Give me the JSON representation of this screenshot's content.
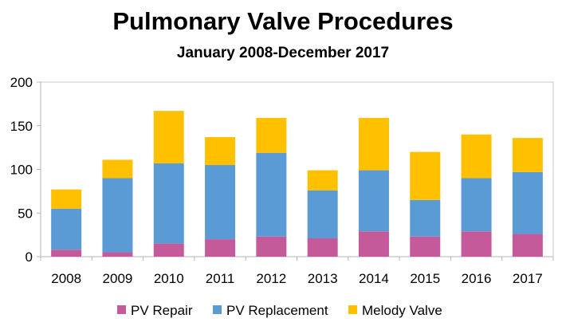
{
  "chart_data": {
    "type": "bar",
    "stacked": true,
    "title": "Pulmonary Valve Procedures",
    "subtitle": "January 2008-December 2017",
    "categories": [
      "2008",
      "2009",
      "2010",
      "2011",
      "2012",
      "2013",
      "2014",
      "2015",
      "2016",
      "2017"
    ],
    "series": [
      {
        "name": "PV Repair",
        "color": "#C55A9B",
        "values": [
          8,
          5,
          15,
          20,
          23,
          21,
          29,
          23,
          29,
          26
        ]
      },
      {
        "name": "PV Replacement",
        "color": "#5B9BD5",
        "values": [
          47,
          85,
          92,
          85,
          96,
          55,
          70,
          42,
          61,
          71
        ]
      },
      {
        "name": "Melody Valve",
        "color": "#FFC000",
        "values": [
          22,
          21,
          60,
          32,
          40,
          23,
          60,
          55,
          50,
          39
        ]
      }
    ],
    "ylim": [
      0,
      200
    ],
    "yticks": [
      "0",
      "50",
      "100",
      "150",
      "200"
    ],
    "legend_position": "bottom",
    "grid": false
  }
}
